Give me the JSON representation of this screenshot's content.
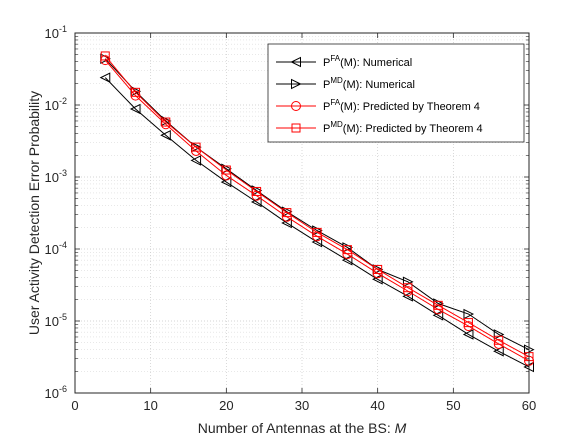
{
  "chart_data": {
    "type": "line",
    "xlabel": "Number of Antennas at the BS:",
    "xlabel_var": "M",
    "ylabel": "User Activity Detection Error Probability",
    "xlim": [
      0,
      60
    ],
    "ylim": [
      1e-06,
      0.1
    ],
    "yscale": "log",
    "grid": true,
    "minor_grid": true,
    "legend_position": "top-right",
    "x_ticks": [
      "0",
      "10",
      "20",
      "30",
      "40",
      "50",
      "60"
    ],
    "y_ticks": [
      {
        "base": "10",
        "exp": "-6"
      },
      {
        "base": "10",
        "exp": "-5"
      },
      {
        "base": "10",
        "exp": "-4"
      },
      {
        "base": "10",
        "exp": "-3"
      },
      {
        "base": "10",
        "exp": "-2"
      },
      {
        "base": "10",
        "exp": "-1"
      }
    ],
    "x": [
      4,
      8,
      12,
      16,
      20,
      24,
      28,
      32,
      36,
      40,
      44,
      48,
      52,
      56,
      60
    ],
    "series": [
      {
        "name_pre": "P",
        "name_sup": "FA",
        "name_post": "(M): Numerical",
        "color": "#000000",
        "marker": "triangle-left",
        "values": [
          0.024,
          0.0088,
          0.0038,
          0.0017,
          0.00085,
          0.00045,
          0.00023,
          0.000125,
          7e-05,
          3.8e-05,
          2.2e-05,
          1.2e-05,
          6.5e-06,
          3.8e-06,
          2.3e-06
        ]
      },
      {
        "name_pre": "P",
        "name_sup": "MD",
        "name_post": "(M): Numerical",
        "color": "#000000",
        "marker": "triangle-right",
        "values": [
          0.044,
          0.0155,
          0.006,
          0.0026,
          0.0013,
          0.00065,
          0.00033,
          0.00018,
          0.000105,
          5.2e-05,
          3.5e-05,
          1.75e-05,
          1.25e-05,
          6.5e-06,
          4e-06
        ]
      },
      {
        "name_pre": "P",
        "name_sup": "FA",
        "name_post": "(M): Predicted by Theorem 4",
        "color": "#ff0000",
        "marker": "circle",
        "values": [
          0.042,
          0.0135,
          0.0054,
          0.0023,
          0.00105,
          0.00055,
          0.00028,
          0.00015,
          8.5e-05,
          4.6e-05,
          2.6e-05,
          1.45e-05,
          8.5e-06,
          4.8e-06,
          2.8e-06
        ]
      },
      {
        "name_pre": "P",
        "name_sup": "MD",
        "name_post": "(M): Predicted by Theorem 4",
        "color": "#ff0000",
        "marker": "square",
        "values": [
          0.048,
          0.015,
          0.0058,
          0.0026,
          0.00125,
          0.00063,
          0.00032,
          0.00017,
          9.8e-05,
          5.2e-05,
          2.9e-05,
          1.65e-05,
          9.5e-06,
          5.4e-06,
          3.2e-06
        ]
      }
    ]
  }
}
